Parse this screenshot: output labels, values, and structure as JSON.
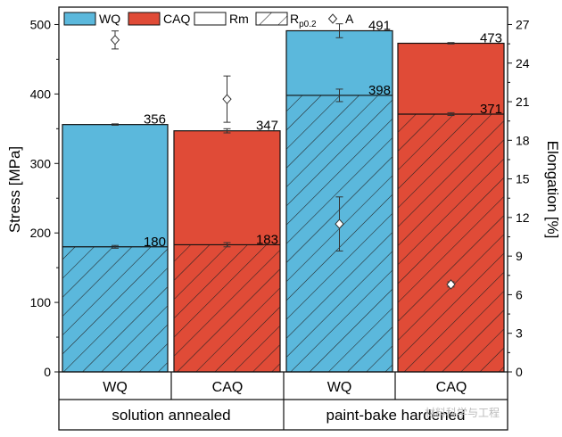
{
  "chart_data": {
    "type": "bar",
    "groups": [
      {
        "label": "solution annealed",
        "categories": [
          "WQ",
          "CAQ"
        ]
      },
      {
        "label": "paint-bake hardened",
        "categories": [
          "WQ",
          "CAQ"
        ]
      }
    ],
    "categories": [
      "WQ",
      "CAQ",
      "WQ",
      "CAQ"
    ],
    "series": [
      {
        "name": "Rm",
        "values": [
          356,
          347,
          491,
          473
        ],
        "errors": [
          1,
          3,
          10,
          1
        ]
      },
      {
        "name": "Rp0.2",
        "values": [
          180,
          183,
          398,
          371
        ],
        "errors": [
          2,
          3,
          9,
          2
        ]
      },
      {
        "name": "A",
        "axis": "right",
        "values": [
          25.8,
          21.2,
          11.5,
          6.8
        ],
        "errors": [
          0.7,
          1.8,
          2.1,
          0.2
        ]
      }
    ],
    "data_labels": {
      "Rm": [
        "356",
        "347",
        "491",
        "473"
      ],
      "Rp0.2": [
        "180",
        "183",
        "398",
        "371"
      ]
    },
    "colors": {
      "WQ": "#5bb8dc",
      "CAQ": "#e04b37"
    },
    "legend": {
      "position": "top",
      "items": [
        {
          "key": "wq",
          "label": "WQ"
        },
        {
          "key": "caq",
          "label": "CAQ"
        },
        {
          "key": "rm",
          "label": "Rm"
        },
        {
          "key": "rp",
          "label": "R",
          "subscript": "p0.2"
        },
        {
          "key": "a",
          "label": "A"
        }
      ]
    },
    "ylabel": "Stress [MPa]",
    "ylim": [
      0,
      525
    ],
    "yticks": [
      0,
      100,
      200,
      300,
      400,
      500
    ],
    "y2label": "Elongation [%]",
    "y2lim": [
      0,
      28.35
    ],
    "y2ticks": [
      0,
      3,
      6,
      9,
      12,
      15,
      18,
      21,
      24,
      27
    ],
    "grid": false
  },
  "watermark": "材料科学与工程"
}
